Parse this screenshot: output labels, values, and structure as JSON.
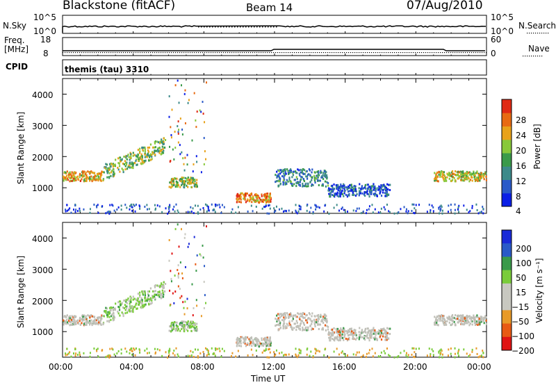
{
  "header": {
    "title": "Blackstone (fitACF)",
    "beam": "Beam 14",
    "date": "07/Aug/2010"
  },
  "panels": {
    "nsky_label": "N.Sky",
    "nsky_ticks": [
      "10^5",
      "10^0"
    ],
    "nsearch_label": "N.Search",
    "nsearch_ticks": [
      "10^5",
      "10^0"
    ],
    "freq_label_1": "Freq.",
    "freq_label_2": "[MHz]",
    "freq_ticks": [
      "18",
      "8"
    ],
    "nave_label": "Nave",
    "nave_ticks": [
      "60",
      "0"
    ],
    "cpid_label": "CPID",
    "cpid_value": "themis (tau) 3310"
  },
  "colors": {
    "power_scale": [
      "#0b1fe6",
      "#2a5ac8",
      "#3d8a8a",
      "#3a9a4a",
      "#88c83a",
      "#e8a21a",
      "#e86a12",
      "#e02a14"
    ],
    "velocity_scale": [
      "#e01414",
      "#e85a14",
      "#e89a28",
      "#c8c8c0",
      "#c8c8c0",
      "#7acc3a",
      "#3a9a4a",
      "#2a5ac8",
      "#1a2ad8"
    ],
    "ground_scatter": "#c0c0b8"
  },
  "chart_data": [
    {
      "type": "heatmap",
      "name": "power",
      "ylabel": "Slant Range [km]",
      "xlabel": "Time UT",
      "x_ticks": [
        "00:00",
        "04:00",
        "08:00",
        "12:00",
        "16:00",
        "20:00",
        "00:00"
      ],
      "xlim_hours": [
        0,
        24
      ],
      "y_ticks": [
        "1000",
        "2000",
        "3000",
        "4000"
      ],
      "ylim": [
        180,
        4500
      ],
      "colorbar_label": "Power [dB]",
      "colorbar_ticks": [
        "4",
        "8",
        "12",
        "16",
        "20",
        "24",
        "28"
      ],
      "features": [
        {
          "from_hour": 0.0,
          "to_hour": 2.2,
          "range_km": [
            1200,
            1600
          ],
          "power_db": 22
        },
        {
          "from_hour": 2.2,
          "to_hour": 5.8,
          "range_km": [
            1400,
            2600
          ],
          "power_db": 16
        },
        {
          "from_hour": 6.0,
          "to_hour": 7.6,
          "range_km": [
            1000,
            1400
          ],
          "power_db": 18
        },
        {
          "from_hour": 9.8,
          "to_hour": 11.8,
          "range_km": [
            500,
            900
          ],
          "power_db": 24
        },
        {
          "from_hour": 12.0,
          "to_hour": 15.0,
          "range_km": [
            1000,
            1700
          ],
          "power_db": 10
        },
        {
          "from_hour": 15.0,
          "to_hour": 18.5,
          "range_km": [
            700,
            1200
          ],
          "power_db": 6
        },
        {
          "from_hour": 21.0,
          "to_hour": 24.0,
          "range_km": [
            1200,
            1600
          ],
          "power_db": 20
        }
      ]
    },
    {
      "type": "heatmap",
      "name": "velocity",
      "ylabel": "Slant Range [km]",
      "xlabel": "Time UT",
      "x_ticks": [
        "00:00",
        "04:00",
        "08:00",
        "12:00",
        "16:00",
        "20:00",
        "00:00"
      ],
      "xlim_hours": [
        0,
        24
      ],
      "y_ticks": [
        "1000",
        "2000",
        "3000",
        "4000"
      ],
      "ylim": [
        180,
        4500
      ],
      "colorbar_label": "Velocity [m s⁻¹]",
      "colorbar_ticks": [
        "200",
        "100",
        "50",
        "15",
        "−15",
        "−50",
        "−100",
        "−200"
      ]
    }
  ],
  "x_axis_label": "Time UT"
}
